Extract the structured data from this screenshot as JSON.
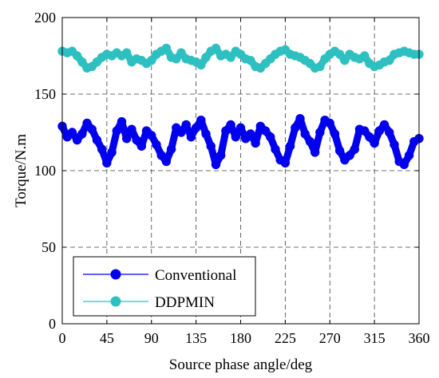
{
  "chart_data": {
    "type": "line",
    "xlabel": "Source phase angle/deg",
    "ylabel": "Torque/N.m",
    "xlim": [
      0,
      360
    ],
    "ylim": [
      0,
      200
    ],
    "x_ticks": [
      0,
      45,
      90,
      135,
      180,
      225,
      270,
      315,
      360
    ],
    "y_ticks": [
      0,
      50,
      100,
      150,
      200
    ],
    "grid": true,
    "legend_position": "bottom-left",
    "series": [
      {
        "name": "Conventional",
        "color": "#0000ee",
        "marker": "circle",
        "x": [
          0,
          5,
          10,
          15,
          20,
          25,
          30,
          35,
          40,
          45,
          50,
          55,
          60,
          65,
          70,
          75,
          80,
          85,
          90,
          95,
          100,
          105,
          110,
          115,
          120,
          125,
          130,
          135,
          140,
          145,
          150,
          155,
          160,
          165,
          170,
          175,
          180,
          185,
          190,
          195,
          200,
          205,
          210,
          215,
          220,
          225,
          230,
          235,
          240,
          245,
          250,
          255,
          260,
          265,
          270,
          275,
          280,
          285,
          290,
          295,
          300,
          305,
          310,
          315,
          320,
          325,
          330,
          335,
          340,
          345,
          350,
          355,
          360
        ],
        "values": [
          129,
          122,
          125,
          120,
          124,
          131,
          127,
          120,
          114,
          105,
          112,
          126,
          132,
          121,
          127,
          120,
          116,
          126,
          123,
          117,
          110,
          106,
          114,
          128,
          125,
          130,
          122,
          128,
          133,
          124,
          116,
          104,
          110,
          126,
          130,
          122,
          128,
          121,
          124,
          118,
          129,
          126,
          122,
          114,
          107,
          105,
          116,
          128,
          134,
          124,
          119,
          112,
          125,
          133,
          131,
          124,
          113,
          107,
          110,
          114,
          127,
          126,
          122,
          118,
          126,
          130,
          125,
          117,
          106,
          104,
          110,
          119,
          121
        ]
      },
      {
        "name": "DDPMIN",
        "color": "#2ec0c0",
        "marker": "circle",
        "x": [
          0,
          5,
          10,
          15,
          20,
          25,
          30,
          35,
          40,
          45,
          50,
          55,
          60,
          65,
          70,
          75,
          80,
          85,
          90,
          95,
          100,
          105,
          110,
          115,
          120,
          125,
          130,
          135,
          140,
          145,
          150,
          155,
          160,
          165,
          170,
          175,
          180,
          185,
          190,
          195,
          200,
          205,
          210,
          215,
          220,
          225,
          230,
          235,
          240,
          245,
          250,
          255,
          260,
          265,
          270,
          275,
          280,
          285,
          290,
          295,
          300,
          305,
          310,
          315,
          320,
          325,
          330,
          335,
          340,
          345,
          350,
          355,
          360
        ],
        "values": [
          178,
          177,
          178,
          175,
          171,
          167,
          168,
          171,
          174,
          176,
          175,
          177,
          175,
          177,
          171,
          173,
          172,
          170,
          172,
          176,
          178,
          180,
          174,
          173,
          177,
          173,
          172,
          171,
          169,
          174,
          178,
          180,
          175,
          176,
          174,
          178,
          176,
          173,
          172,
          168,
          167,
          170,
          173,
          176,
          178,
          179,
          176,
          175,
          174,
          172,
          170,
          167,
          168,
          173,
          176,
          178,
          176,
          172,
          176,
          174,
          173,
          175,
          170,
          168,
          169,
          171,
          172,
          176,
          177,
          178,
          177,
          176,
          176
        ]
      }
    ]
  }
}
